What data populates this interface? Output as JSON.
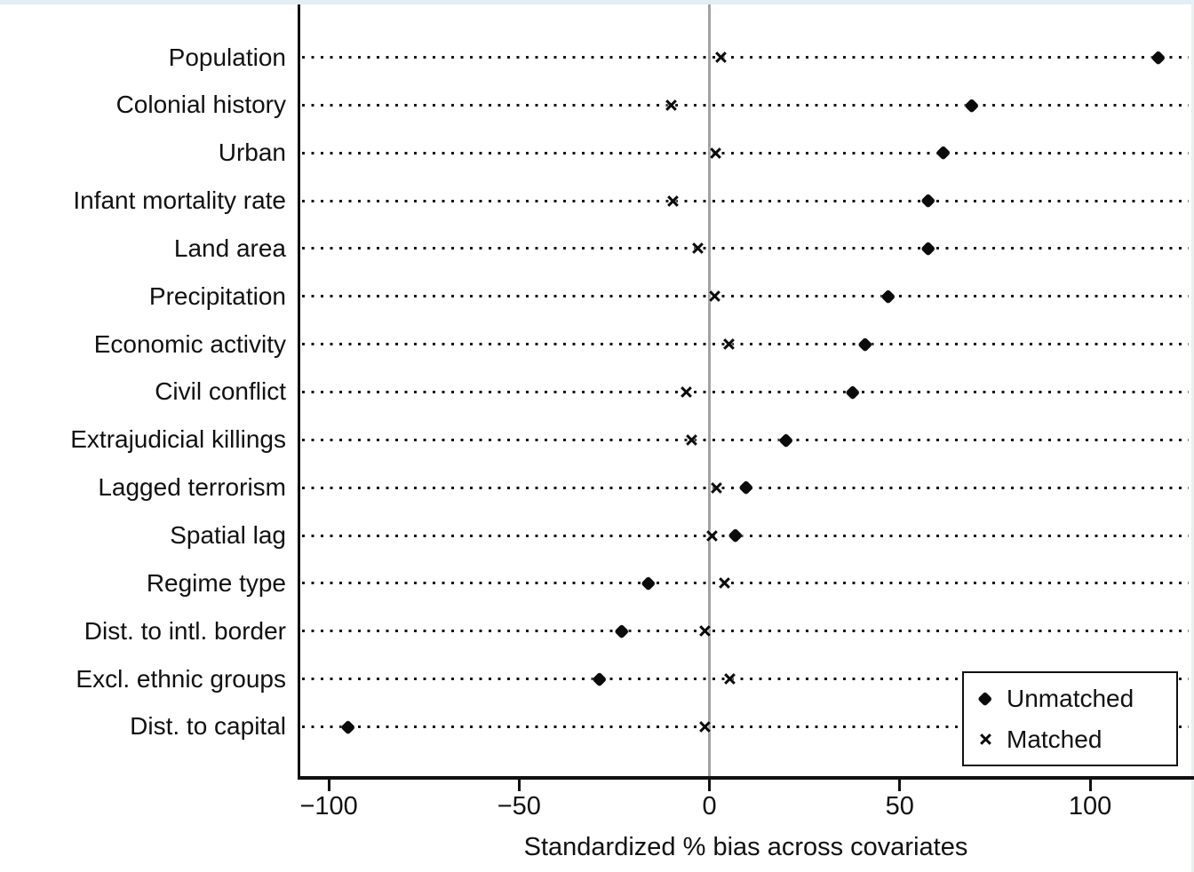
{
  "figure": {
    "background": "#ffffff",
    "edge_top_color": "#e2eef1",
    "edge_right_color": "#e5f1f3",
    "text_color": "#111111"
  },
  "chart_data": {
    "type": "scatter",
    "subtype": "horizontal-dot-plot (covariate balance plot)",
    "title": "",
    "xlabel": "Standardized % bias across covariates",
    "ylabel": "",
    "xlim": [
      -108.2,
      127.3
    ],
    "xticks": [
      -100,
      -50,
      0,
      50,
      100
    ],
    "xtick_labels": [
      "−100",
      "−50",
      "0",
      "50",
      "100"
    ],
    "grid": "dotted horizontal row guides",
    "zero_reference_line": true,
    "legend_position": "bottom-right inset box",
    "categories": [
      "Population",
      "Colonial history",
      "Urban",
      "Infant mortality rate",
      "Land area",
      "Precipitation",
      "Economic activity",
      "Civil conflict",
      "Extrajudicial killings",
      "Lagged terrorism",
      "Spatial lag",
      "Regime type",
      "Dist. to intl. border",
      "Excl. ethnic groups",
      "Dist. to capital"
    ],
    "series": [
      {
        "name": "Unmatched",
        "marker": "filled-diamond",
        "values": [
          118,
          69,
          61.5,
          57.5,
          57.5,
          47,
          41,
          37.5,
          20,
          9.5,
          6.7,
          -16,
          -23,
          -29,
          -95
        ]
      },
      {
        "name": "Matched",
        "marker": "x",
        "values": [
          3,
          -10,
          1.7,
          -9.5,
          -3,
          1.3,
          5,
          -6,
          -4.6,
          1.8,
          0.6,
          4,
          -1.1,
          5.4,
          -1.3
        ]
      }
    ],
    "colors": {
      "markers": "#0b0b0b",
      "zero_line": "#a2a2a2",
      "dotted_rows": "#161616",
      "axes": "#111111"
    }
  }
}
